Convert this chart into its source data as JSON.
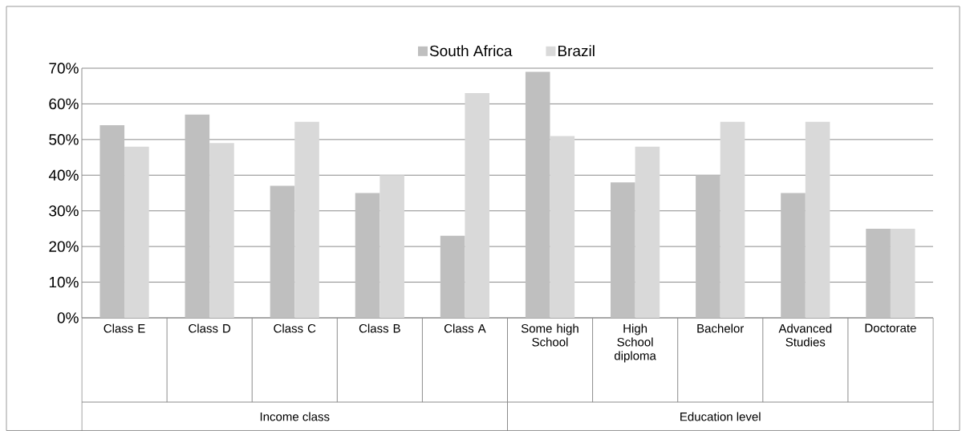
{
  "chart_data": {
    "type": "bar",
    "categories": [
      "Class E",
      "Class D",
      "Class C",
      "Class B",
      "Class A",
      "Some high School",
      "High School diploma",
      "Bachelor",
      "Advanced Studies",
      "Doctorate"
    ],
    "series": [
      {
        "name": "South Africa",
        "color": "#bfbfbf",
        "values": [
          54,
          57,
          37,
          35,
          23,
          69,
          38,
          40,
          35,
          25
        ]
      },
      {
        "name": "Brazil",
        "color": "#d9d9d9",
        "values": [
          48,
          49,
          55,
          40,
          63,
          51,
          48,
          55,
          55,
          25
        ]
      }
    ],
    "ylim": [
      0,
      70
    ],
    "yticks": [
      {
        "value": 0,
        "label": "0%"
      },
      {
        "value": 10,
        "label": "10%"
      },
      {
        "value": 20,
        "label": "20%"
      },
      {
        "value": 30,
        "label": "30%"
      },
      {
        "value": 40,
        "label": "40%"
      },
      {
        "value": 50,
        "label": "50%"
      },
      {
        "value": 60,
        "label": "60%"
      },
      {
        "value": 70,
        "label": "70%"
      }
    ],
    "grid": "y",
    "legend": "top",
    "annotations": [
      "Income class",
      "Education level"
    ]
  }
}
